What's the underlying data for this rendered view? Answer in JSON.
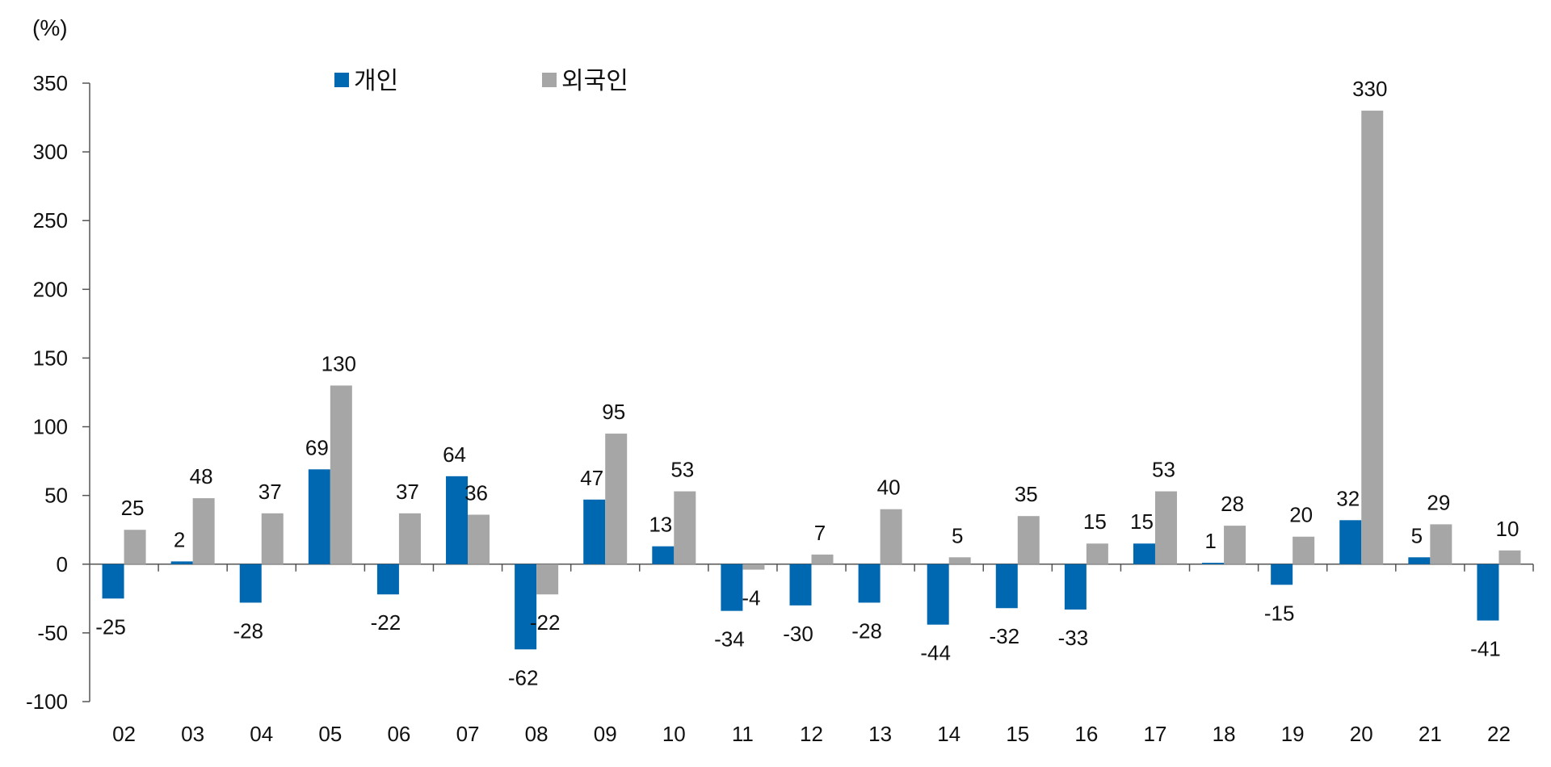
{
  "chart_data": {
    "type": "bar",
    "title": "",
    "xlabel": "",
    "ylabel": "(%)",
    "ylim": [
      -100,
      350
    ],
    "yticks": [
      350,
      300,
      250,
      200,
      150,
      100,
      50,
      0,
      -50,
      -100
    ],
    "grid": false,
    "legend_position": "top-left",
    "categories": [
      "02",
      "03",
      "04",
      "05",
      "06",
      "07",
      "08",
      "09",
      "10",
      "11",
      "12",
      "13",
      "14",
      "15",
      "16",
      "17",
      "18",
      "19",
      "20",
      "21",
      "22"
    ],
    "series": [
      {
        "name": "개인",
        "color": "#0068B0",
        "values": [
          -25,
          2,
          -28,
          69,
          -22,
          64,
          -62,
          47,
          13,
          -34,
          -30,
          -28,
          -44,
          -32,
          -33,
          15,
          1,
          -15,
          32,
          5,
          -41
        ]
      },
      {
        "name": "외국인",
        "color": "#A6A6A6",
        "values": [
          25,
          48,
          37,
          130,
          37,
          36,
          -22,
          95,
          53,
          -4,
          7,
          40,
          5,
          35,
          15,
          53,
          28,
          20,
          330,
          29,
          10
        ]
      }
    ]
  }
}
